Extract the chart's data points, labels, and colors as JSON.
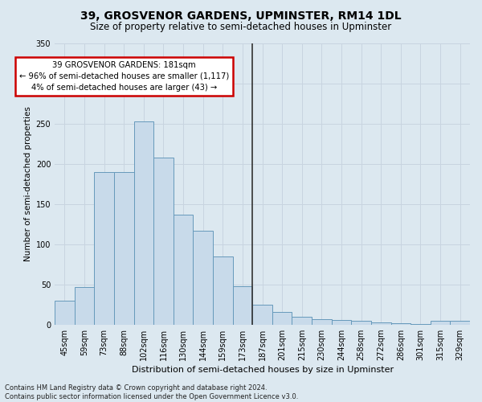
{
  "title": "39, GROSVENOR GARDENS, UPMINSTER, RM14 1DL",
  "subtitle": "Size of property relative to semi-detached houses in Upminster",
  "xlabel": "Distribution of semi-detached houses by size in Upminster",
  "ylabel": "Number of semi-detached properties",
  "footer_line1": "Contains HM Land Registry data © Crown copyright and database right 2024.",
  "footer_line2": "Contains public sector information licensed under the Open Government Licence v3.0.",
  "categories": [
    "45sqm",
    "59sqm",
    "73sqm",
    "88sqm",
    "102sqm",
    "116sqm",
    "130sqm",
    "144sqm",
    "159sqm",
    "173sqm",
    "187sqm",
    "201sqm",
    "215sqm",
    "230sqm",
    "244sqm",
    "258sqm",
    "272sqm",
    "286sqm",
    "301sqm",
    "315sqm",
    "329sqm"
  ],
  "values": [
    30,
    47,
    190,
    190,
    253,
    208,
    137,
    117,
    85,
    48,
    25,
    16,
    10,
    7,
    6,
    5,
    3,
    2,
    1,
    5,
    5
  ],
  "property_index": 9.5,
  "bar_color": "#c8daea",
  "bar_edge_color": "#6699bb",
  "annotation_line1": "39 GROSVENOR GARDENS: 181sqm",
  "annotation_line2": "← 96% of semi-detached houses are smaller (1,117)",
  "annotation_line3": "4% of semi-detached houses are larger (43) →",
  "annotation_box_color": "#ffffff",
  "annotation_border_color": "#cc0000",
  "vline_color": "#333333",
  "ylim": [
    0,
    350
  ],
  "yticks": [
    0,
    50,
    100,
    150,
    200,
    250,
    300,
    350
  ],
  "grid_color": "#c8d4e0",
  "background_color": "#dce8f0",
  "title_fontsize": 10,
  "subtitle_fontsize": 8.5,
  "xlabel_fontsize": 8,
  "ylabel_fontsize": 7.5,
  "tick_fontsize": 7,
  "footer_fontsize": 6
}
